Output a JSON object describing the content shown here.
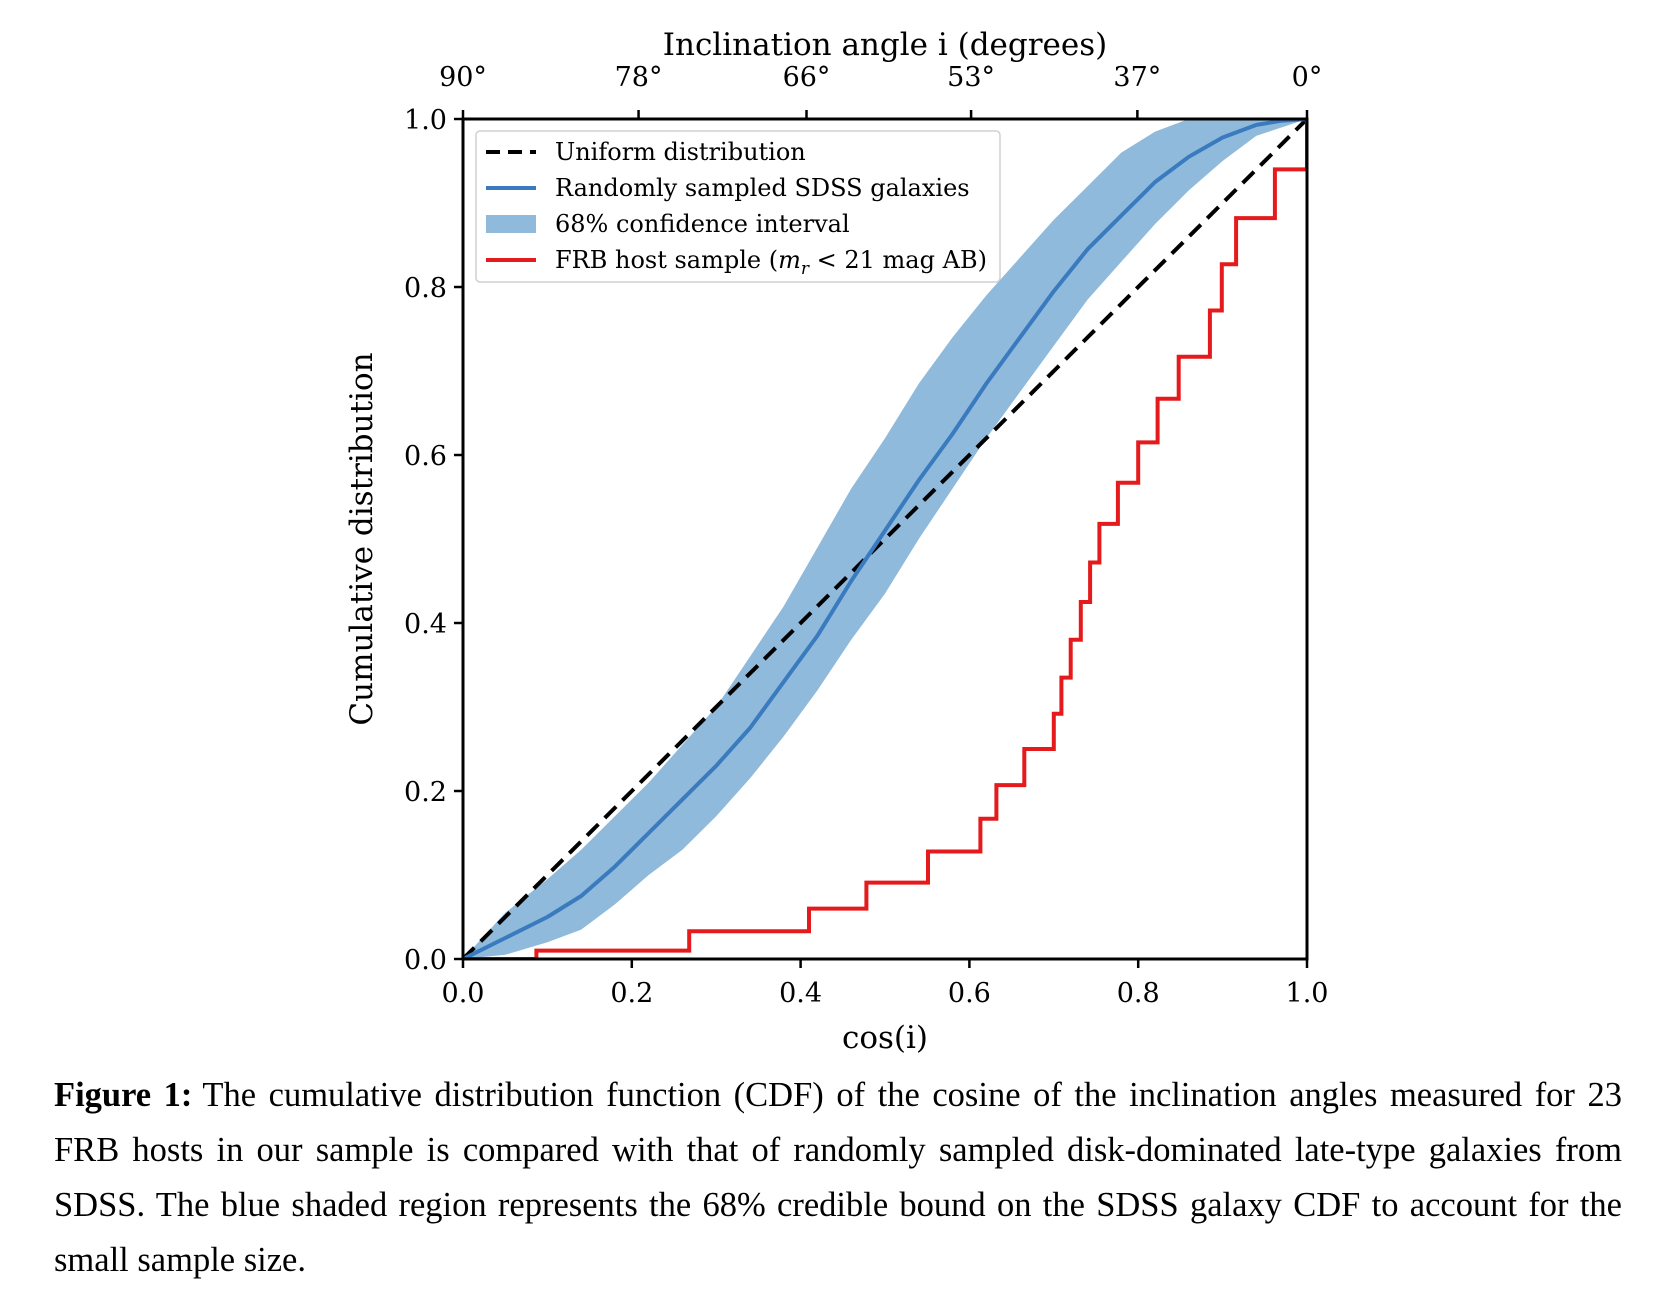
{
  "chart_data": {
    "type": "line",
    "xlabel": "cos(i)",
    "ylabel": "Cumulative distribution",
    "top_xlabel": "Inclination angle i (degrees)",
    "xlim": [
      0,
      1
    ],
    "ylim": [
      0,
      1
    ],
    "x_ticks": [
      "0.0",
      "0.2",
      "0.4",
      "0.6",
      "0.8",
      "1.0"
    ],
    "y_ticks": [
      "0.0",
      "0.2",
      "0.4",
      "0.6",
      "0.8",
      "1.0"
    ],
    "top_ticks": [
      {
        "label": "90°",
        "cos_i": 0.0
      },
      {
        "label": "78°",
        "cos_i": 0.208
      },
      {
        "label": "66°",
        "cos_i": 0.407
      },
      {
        "label": "53°",
        "cos_i": 0.602
      },
      {
        "label": "37°",
        "cos_i": 0.799
      },
      {
        "label": "0°",
        "cos_i": 1.0
      }
    ],
    "grid": false,
    "legend_position": "upper left",
    "series": [
      {
        "name": "Uniform distribution",
        "style": "dashed",
        "color": "#000000",
        "x": [
          0,
          1
        ],
        "y": [
          0,
          1
        ]
      },
      {
        "name": "Randomly sampled SDSS galaxies",
        "style": "line",
        "color": "#3a7bbf",
        "x": [
          0.0,
          0.05,
          0.1,
          0.14,
          0.18,
          0.22,
          0.26,
          0.3,
          0.34,
          0.38,
          0.42,
          0.46,
          0.5,
          0.54,
          0.58,
          0.62,
          0.66,
          0.7,
          0.74,
          0.78,
          0.82,
          0.86,
          0.9,
          0.94,
          0.97,
          1.0
        ],
        "y": [
          0.0,
          0.025,
          0.05,
          0.075,
          0.11,
          0.15,
          0.19,
          0.23,
          0.275,
          0.33,
          0.385,
          0.45,
          0.51,
          0.57,
          0.625,
          0.685,
          0.74,
          0.795,
          0.845,
          0.885,
          0.925,
          0.955,
          0.978,
          0.993,
          0.998,
          1.0
        ]
      },
      {
        "name": "68% confidence interval",
        "style": "band",
        "color": "#8fbadb",
        "x": [
          0.0,
          0.05,
          0.1,
          0.14,
          0.18,
          0.22,
          0.26,
          0.3,
          0.34,
          0.38,
          0.42,
          0.46,
          0.5,
          0.54,
          0.58,
          0.62,
          0.66,
          0.7,
          0.74,
          0.78,
          0.82,
          0.86,
          0.9,
          0.94,
          1.0
        ],
        "lower": [
          0.0,
          0.005,
          0.02,
          0.035,
          0.065,
          0.1,
          0.13,
          0.17,
          0.215,
          0.265,
          0.32,
          0.38,
          0.435,
          0.5,
          0.56,
          0.62,
          0.675,
          0.73,
          0.785,
          0.83,
          0.875,
          0.915,
          0.95,
          0.98,
          1.0
        ],
        "upper": [
          0.0,
          0.055,
          0.095,
          0.13,
          0.17,
          0.21,
          0.255,
          0.3,
          0.36,
          0.42,
          0.49,
          0.56,
          0.62,
          0.685,
          0.74,
          0.79,
          0.835,
          0.88,
          0.92,
          0.96,
          0.985,
          1.0,
          1.0,
          1.0,
          1.0
        ]
      },
      {
        "name": "FRB host sample (m_r < 21 mag AB)",
        "style": "step",
        "color": "#e41a1c",
        "x": [
          0.0,
          0.087,
          0.268,
          0.41,
          0.478,
          0.551,
          0.613,
          0.632,
          0.665,
          0.7,
          0.709,
          0.72,
          0.732,
          0.743,
          0.754,
          0.776,
          0.8,
          0.823,
          0.848,
          0.885,
          0.899,
          0.916,
          0.962,
          1.0
        ],
        "y": [
          0.0,
          0.01,
          0.033,
          0.06,
          0.091,
          0.128,
          0.167,
          0.207,
          0.25,
          0.292,
          0.335,
          0.38,
          0.425,
          0.472,
          0.518,
          0.567,
          0.615,
          0.667,
          0.717,
          0.772,
          0.827,
          0.882,
          0.94,
          1.0
        ]
      }
    ]
  },
  "legend": {
    "uniform": "Uniform distribution",
    "sdss": "Randomly sampled SDSS galaxies",
    "ci": "68% confidence interval",
    "frb_prefix": "FRB host sample (",
    "frb_m": "m",
    "frb_sub": "r",
    "frb_suffix": " < 21 mag AB)"
  },
  "caption": {
    "label": "Figure 1:",
    "text": "The cumulative distribution function (CDF) of the cosine of the inclination angles measured for 23 FRB hosts in our sample is compared with that of randomly sampled disk-dominated late-type galaxies from SDSS. The blue shaded region represents the 68% credible bound on the SDSS galaxy CDF to account for the small sample size."
  }
}
